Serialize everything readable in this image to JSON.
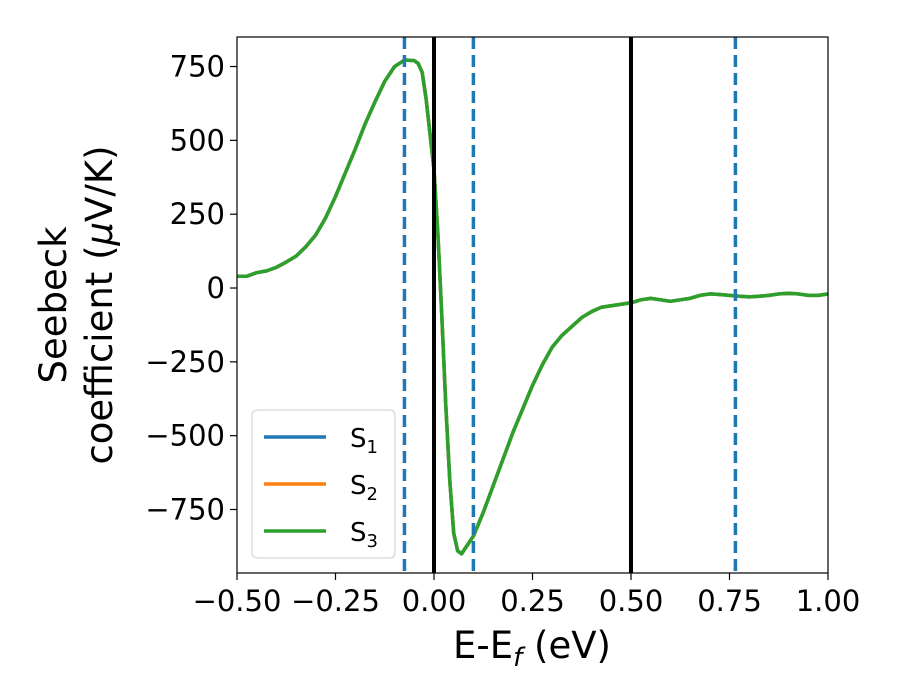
{
  "chart_data": {
    "type": "line",
    "title": "",
    "xlabel": {
      "main": "E-E",
      "sub": "f",
      "tail": " (eV)"
    },
    "ylabel": {
      "line1": "Seebeck",
      "line2": "coefficient  (",
      "mu": "μ",
      "line2_tail": "V/K)"
    },
    "xlim": [
      -0.5,
      1.0
    ],
    "ylim": [
      -965,
      850
    ],
    "xticks": [
      {
        "value": -0.5,
        "label": "−0.50"
      },
      {
        "value": -0.25,
        "label": "−0.25"
      },
      {
        "value": 0.0,
        "label": "0.00"
      },
      {
        "value": 0.25,
        "label": "0.25"
      },
      {
        "value": 0.5,
        "label": "0.50"
      },
      {
        "value": 0.75,
        "label": "0.75"
      },
      {
        "value": 1.0,
        "label": "1.00"
      }
    ],
    "yticks": [
      {
        "value": 750,
        "label": "750"
      },
      {
        "value": 500,
        "label": "500"
      },
      {
        "value": 250,
        "label": "250"
      },
      {
        "value": 0,
        "label": "0"
      },
      {
        "value": -250,
        "label": "−250"
      },
      {
        "value": -500,
        "label": "−500"
      },
      {
        "value": -750,
        "label": "−750"
      }
    ],
    "grid": false,
    "legend_position": "lower-left",
    "x": [
      -0.5,
      -0.475,
      -0.45,
      -0.425,
      -0.4,
      -0.375,
      -0.35,
      -0.325,
      -0.3,
      -0.275,
      -0.25,
      -0.225,
      -0.2,
      -0.175,
      -0.15,
      -0.125,
      -0.1,
      -0.075,
      -0.05,
      -0.04,
      -0.03,
      -0.02,
      -0.01,
      0.0,
      0.01,
      0.02,
      0.03,
      0.04,
      0.05,
      0.06,
      0.07,
      0.08,
      0.09,
      0.1,
      0.125,
      0.15,
      0.175,
      0.2,
      0.225,
      0.25,
      0.275,
      0.3,
      0.325,
      0.35,
      0.375,
      0.4,
      0.425,
      0.45,
      0.475,
      0.5,
      0.525,
      0.55,
      0.575,
      0.6,
      0.625,
      0.65,
      0.675,
      0.7,
      0.725,
      0.75,
      0.775,
      0.8,
      0.825,
      0.85,
      0.875,
      0.9,
      0.925,
      0.95,
      0.975,
      1.0
    ],
    "series": [
      {
        "name": "S1",
        "color": "#1f77b4",
        "values": [
          40,
          40,
          52,
          58,
          70,
          88,
          108,
          140,
          180,
          238,
          310,
          390,
          470,
          555,
          630,
          700,
          750,
          772,
          770,
          760,
          730,
          640,
          520,
          400,
          180,
          -100,
          -400,
          -650,
          -830,
          -890,
          -900,
          -880,
          -860,
          -840,
          -760,
          -670,
          -580,
          -490,
          -410,
          -330,
          -260,
          -200,
          -160,
          -130,
          -100,
          -80,
          -65,
          -60,
          -55,
          -50,
          -40,
          -35,
          -40,
          -45,
          -40,
          -35,
          -25,
          -20,
          -22,
          -25,
          -28,
          -30,
          -28,
          -25,
          -20,
          -18,
          -20,
          -25,
          -25,
          -20
        ]
      },
      {
        "name": "S2",
        "color": "#ff7f0e",
        "values": [
          40,
          40,
          52,
          58,
          70,
          88,
          108,
          140,
          180,
          238,
          310,
          390,
          470,
          555,
          630,
          700,
          750,
          772,
          770,
          760,
          730,
          640,
          520,
          400,
          180,
          -100,
          -400,
          -650,
          -830,
          -890,
          -900,
          -880,
          -860,
          -840,
          -760,
          -670,
          -580,
          -490,
          -410,
          -330,
          -260,
          -200,
          -160,
          -130,
          -100,
          -80,
          -65,
          -60,
          -55,
          -50,
          -40,
          -35,
          -40,
          -45,
          -40,
          -35,
          -25,
          -20,
          -22,
          -25,
          -28,
          -30,
          -28,
          -25,
          -20,
          -18,
          -20,
          -25,
          -25,
          -20
        ]
      },
      {
        "name": "S3",
        "color": "#2ca02c",
        "values": [
          40,
          40,
          52,
          58,
          70,
          88,
          108,
          140,
          180,
          238,
          310,
          390,
          470,
          555,
          630,
          700,
          750,
          772,
          770,
          760,
          730,
          640,
          520,
          400,
          180,
          -100,
          -400,
          -650,
          -830,
          -890,
          -900,
          -880,
          -860,
          -840,
          -760,
          -670,
          -580,
          -490,
          -410,
          -330,
          -260,
          -200,
          -160,
          -130,
          -100,
          -80,
          -65,
          -60,
          -55,
          -50,
          -40,
          -35,
          -40,
          -45,
          -40,
          -35,
          -25,
          -20,
          -22,
          -25,
          -28,
          -30,
          -28,
          -25,
          -20,
          -18,
          -20,
          -25,
          -25,
          -20
        ]
      }
    ],
    "legend": [
      {
        "base": "S",
        "sub": "1",
        "color": "#1f77b4"
      },
      {
        "base": "S",
        "sub": "2",
        "color": "#ff7f0e"
      },
      {
        "base": "S",
        "sub": "3",
        "color": "#2ca02c"
      }
    ],
    "vlines": [
      {
        "x": -0.075,
        "style": "dashed",
        "color": "#1f77b4"
      },
      {
        "x": 0.0,
        "style": "solid",
        "color": "#000000"
      },
      {
        "x": 0.1,
        "style": "dashed",
        "color": "#1f77b4"
      },
      {
        "x": 0.5,
        "style": "solid",
        "color": "#000000"
      },
      {
        "x": 0.765,
        "style": "dashed",
        "color": "#1f77b4"
      }
    ]
  }
}
